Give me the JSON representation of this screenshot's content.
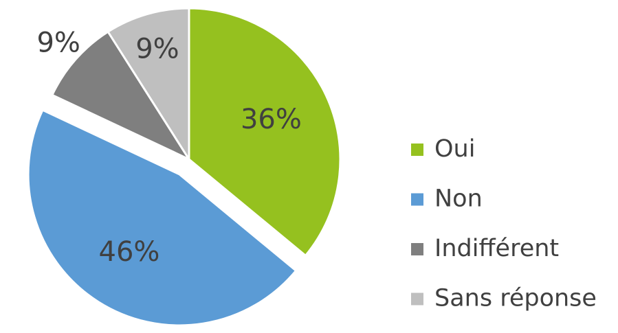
{
  "chart_data": {
    "type": "pie",
    "categories": [
      "Oui",
      "Non",
      "Indifférent",
      "Sans réponse"
    ],
    "values": [
      36,
      46,
      9,
      9
    ],
    "value_labels": [
      "36%",
      "46%",
      "9%",
      "9%"
    ],
    "colors": [
      "#95c11f",
      "#5b9bd5",
      "#7f7f7f",
      "#bfbfbf"
    ],
    "legend": "right"
  }
}
